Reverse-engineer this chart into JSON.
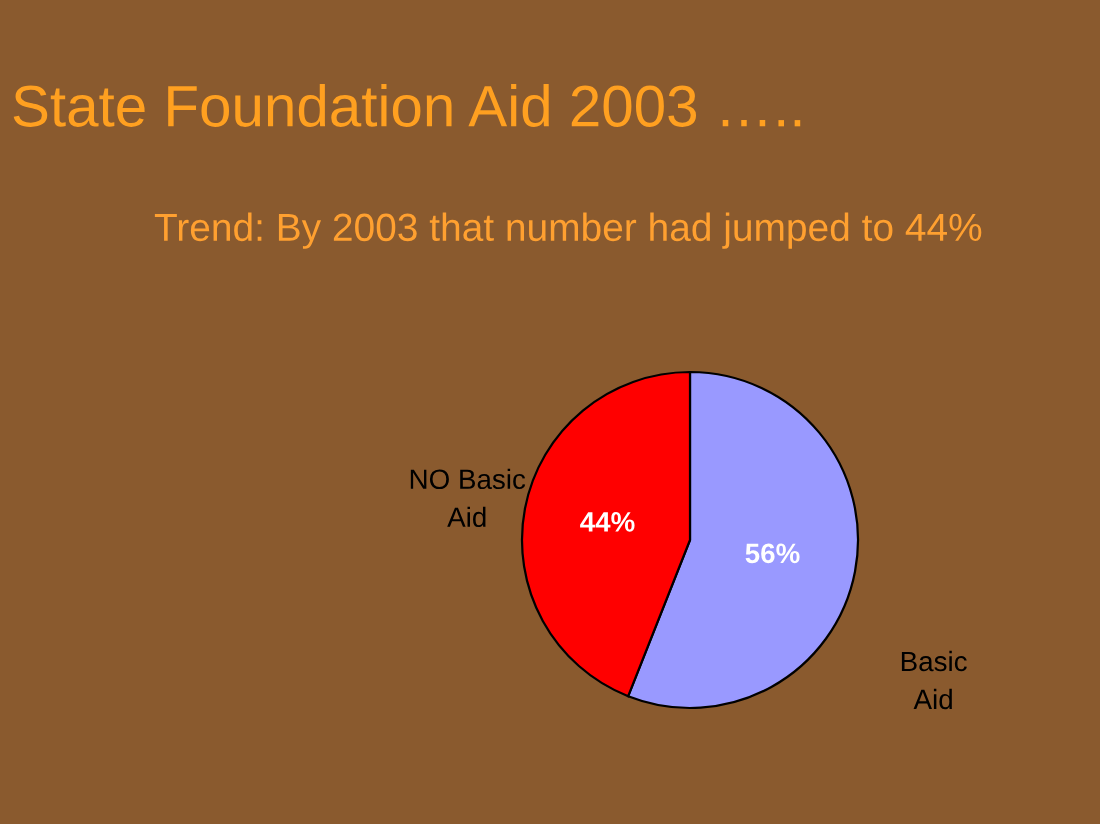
{
  "chart_data": {
    "type": "pie",
    "title": "State Foundation Aid 2003 …..",
    "subtitle": "Trend: By 2003 that number had jumped to 44%",
    "categories": [
      "Basic Aid",
      "NO Basic Aid"
    ],
    "values": [
      56,
      44
    ],
    "colors": [
      "#9999ff",
      "#ff0000"
    ],
    "value_labels": [
      "56%",
      "44%"
    ],
    "legend": false
  }
}
